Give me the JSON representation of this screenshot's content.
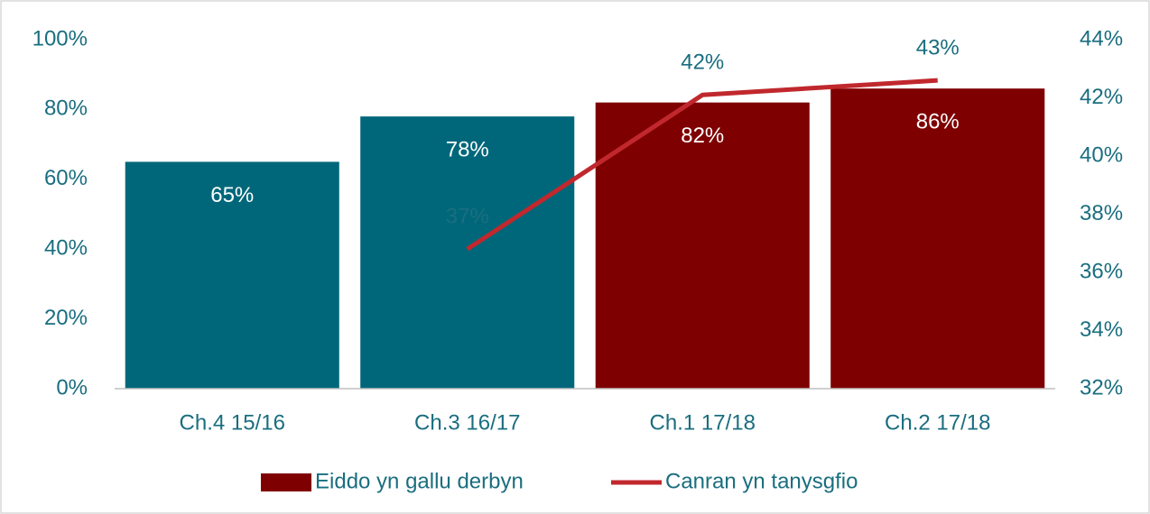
{
  "chart_data": {
    "type": "combo",
    "categories": [
      "Ch.4 15/16",
      "Ch.3 16/17",
      "Ch.1 17/18",
      "Ch.2 17/18"
    ],
    "series": [
      {
        "name": "Eiddo yn gallu derbyn",
        "type": "bar",
        "color": "#7f0000",
        "colors": [
          "#00677a",
          "#00677a",
          "#7f0000",
          "#7f0000"
        ],
        "values": [
          65,
          78,
          82,
          86
        ],
        "value_labels": [
          "65%",
          "78%",
          "82%",
          "86%"
        ]
      },
      {
        "name": "Canran yn tanysgfio",
        "type": "line",
        "axis": "y2",
        "color": "#c0282d",
        "values": [
          null,
          36.8,
          42.1,
          42.6
        ],
        "value_labels": [
          null,
          "37%",
          "42%",
          "43%"
        ]
      }
    ],
    "ylim": [
      0,
      100
    ],
    "yticks": [
      {
        "value": 0,
        "label": "0%"
      },
      {
        "value": 20,
        "label": "20%"
      },
      {
        "value": 40,
        "label": "40%"
      },
      {
        "value": 60,
        "label": "60%"
      },
      {
        "value": 80,
        "label": "80%"
      },
      {
        "value": 100,
        "label": "100%"
      }
    ],
    "y2lim": [
      32,
      44
    ],
    "y2ticks": [
      {
        "value": 32,
        "label": "32%"
      },
      {
        "value": 34,
        "label": "34%"
      },
      {
        "value": 36,
        "label": "36%"
      },
      {
        "value": 38,
        "label": "38%"
      },
      {
        "value": 40,
        "label": "40%"
      },
      {
        "value": 42,
        "label": "42%"
      },
      {
        "value": 44,
        "label": "44%"
      }
    ],
    "legend": "bottom"
  }
}
